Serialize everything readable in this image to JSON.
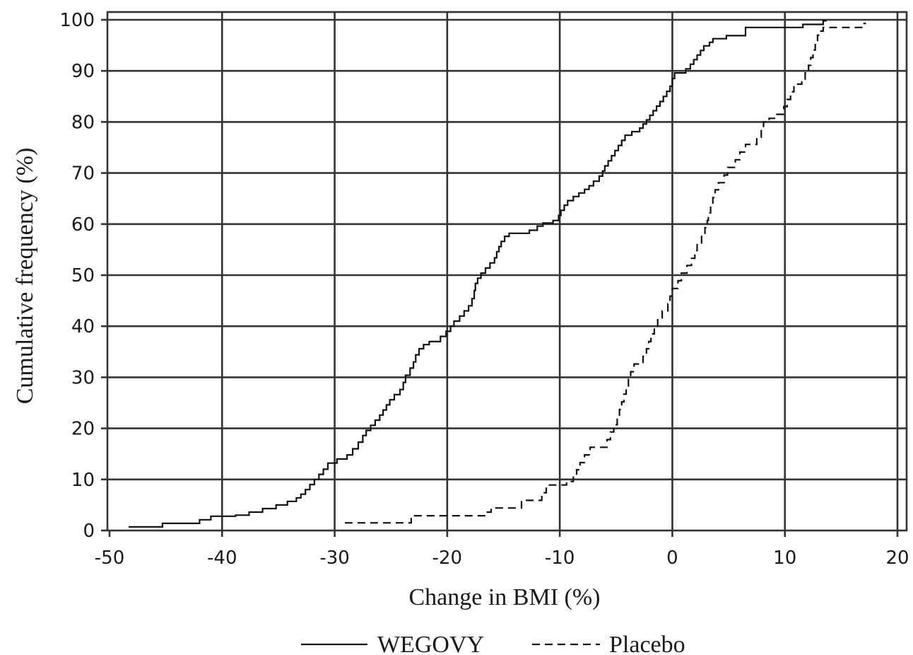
{
  "chart_data": {
    "type": "line",
    "step": true,
    "xlabel": "Change in BMI (%)",
    "ylabel": "Cumulative frequency (%)",
    "xlim": [
      -50,
      20
    ],
    "ylim": [
      0,
      100
    ],
    "xticks": [
      -50,
      -40,
      -30,
      -20,
      -10,
      0,
      10,
      20
    ],
    "yticks": [
      0,
      10,
      20,
      30,
      40,
      50,
      60,
      70,
      80,
      90,
      100
    ],
    "grid": true,
    "legend": "bottom-center",
    "series": [
      {
        "name": "WEGOVY",
        "style": "solid",
        "color": "#111111",
        "points": [
          [
            -48.3,
            0.7
          ],
          [
            -45.3,
            1.4
          ],
          [
            -42.0,
            2.1
          ],
          [
            -41.0,
            2.8
          ],
          [
            -38.8,
            3.0
          ],
          [
            -37.6,
            3.6
          ],
          [
            -36.4,
            4.3
          ],
          [
            -35.2,
            5.0
          ],
          [
            -34.2,
            5.7
          ],
          [
            -33.4,
            6.4
          ],
          [
            -33.0,
            7.1
          ],
          [
            -32.6,
            8.0
          ],
          [
            -32.2,
            9.0
          ],
          [
            -31.8,
            10.0
          ],
          [
            -31.4,
            11.0
          ],
          [
            -31.0,
            12.0
          ],
          [
            -30.6,
            13.2
          ],
          [
            -29.8,
            14.0
          ],
          [
            -28.9,
            14.8
          ],
          [
            -28.4,
            16.0
          ],
          [
            -27.9,
            17.3
          ],
          [
            -27.5,
            18.6
          ],
          [
            -27.2,
            19.6
          ],
          [
            -26.8,
            20.6
          ],
          [
            -26.4,
            21.6
          ],
          [
            -26.0,
            22.6
          ],
          [
            -25.7,
            23.6
          ],
          [
            -25.4,
            24.6
          ],
          [
            -25.1,
            25.6
          ],
          [
            -24.7,
            26.6
          ],
          [
            -24.2,
            27.6
          ],
          [
            -23.9,
            29.0
          ],
          [
            -23.7,
            30.4
          ],
          [
            -23.3,
            31.8
          ],
          [
            -23.0,
            33.0
          ],
          [
            -22.8,
            34.4
          ],
          [
            -22.5,
            35.6
          ],
          [
            -22.1,
            36.4
          ],
          [
            -21.6,
            37.0
          ],
          [
            -20.6,
            38.0
          ],
          [
            -20.1,
            39.0
          ],
          [
            -19.7,
            40.0
          ],
          [
            -19.4,
            41.0
          ],
          [
            -18.9,
            42.0
          ],
          [
            -18.5,
            43.0
          ],
          [
            -18.1,
            44.0
          ],
          [
            -17.8,
            45.4
          ],
          [
            -17.6,
            47.0
          ],
          [
            -17.5,
            48.4
          ],
          [
            -17.3,
            49.4
          ],
          [
            -17.0,
            50.4
          ],
          [
            -16.6,
            51.4
          ],
          [
            -16.2,
            52.4
          ],
          [
            -15.8,
            53.4
          ],
          [
            -15.6,
            54.6
          ],
          [
            -15.4,
            55.6
          ],
          [
            -15.2,
            56.6
          ],
          [
            -14.9,
            57.6
          ],
          [
            -14.5,
            58.2
          ],
          [
            -12.7,
            58.8
          ],
          [
            -12.0,
            59.6
          ],
          [
            -11.5,
            60.2
          ],
          [
            -10.6,
            60.7
          ],
          [
            -10.1,
            61.7
          ],
          [
            -9.9,
            62.7
          ],
          [
            -9.6,
            63.7
          ],
          [
            -9.3,
            64.6
          ],
          [
            -8.8,
            65.4
          ],
          [
            -8.3,
            66.1
          ],
          [
            -7.8,
            66.8
          ],
          [
            -7.4,
            67.5
          ],
          [
            -7.0,
            68.4
          ],
          [
            -6.5,
            69.4
          ],
          [
            -6.2,
            70.4
          ],
          [
            -6.0,
            71.4
          ],
          [
            -5.7,
            72.4
          ],
          [
            -5.4,
            73.4
          ],
          [
            -5.1,
            74.4
          ],
          [
            -4.8,
            75.4
          ],
          [
            -4.5,
            76.4
          ],
          [
            -4.2,
            77.4
          ],
          [
            -3.6,
            78.1
          ],
          [
            -2.9,
            78.8
          ],
          [
            -2.6,
            79.6
          ],
          [
            -2.3,
            80.4
          ],
          [
            -2.0,
            81.3
          ],
          [
            -1.7,
            82.2
          ],
          [
            -1.4,
            83.1
          ],
          [
            -1.1,
            84.0
          ],
          [
            -0.8,
            85.0
          ],
          [
            -0.5,
            86.0
          ],
          [
            -0.2,
            87.0
          ],
          [
            0.0,
            88.5
          ],
          [
            0.2,
            89.6
          ],
          [
            1.2,
            90.4
          ],
          [
            1.6,
            91.3
          ],
          [
            1.9,
            92.2
          ],
          [
            2.2,
            93.1
          ],
          [
            2.5,
            94.0
          ],
          [
            2.8,
            94.9
          ],
          [
            3.3,
            95.6
          ],
          [
            3.6,
            96.3
          ],
          [
            4.8,
            96.9
          ],
          [
            6.5,
            98.5
          ],
          [
            11.6,
            99.1
          ],
          [
            13.4,
            99.8
          ],
          [
            13.7,
            99.8
          ]
        ]
      },
      {
        "name": "Placebo",
        "style": "dashed",
        "color": "#111111",
        "points": [
          [
            -29.1,
            1.5
          ],
          [
            -23.2,
            2.9
          ],
          [
            -16.5,
            3.6
          ],
          [
            -16.1,
            4.4
          ],
          [
            -13.4,
            5.9
          ],
          [
            -11.6,
            7.4
          ],
          [
            -11.2,
            8.9
          ],
          [
            -9.4,
            9.6
          ],
          [
            -8.8,
            10.4
          ],
          [
            -8.5,
            11.9
          ],
          [
            -8.2,
            13.3
          ],
          [
            -7.8,
            14.8
          ],
          [
            -7.3,
            16.3
          ],
          [
            -5.8,
            17.8
          ],
          [
            -5.5,
            19.3
          ],
          [
            -5.2,
            20.7
          ],
          [
            -4.9,
            22.2
          ],
          [
            -4.7,
            23.7
          ],
          [
            -4.5,
            25.2
          ],
          [
            -4.3,
            26.7
          ],
          [
            -4.1,
            28.1
          ],
          [
            -3.9,
            29.6
          ],
          [
            -3.7,
            31.1
          ],
          [
            -3.4,
            32.6
          ],
          [
            -2.6,
            34.1
          ],
          [
            -2.3,
            35.6
          ],
          [
            -2.1,
            37.0
          ],
          [
            -1.9,
            38.5
          ],
          [
            -1.6,
            40.0
          ],
          [
            -1.3,
            41.5
          ],
          [
            -0.9,
            43.0
          ],
          [
            -0.4,
            44.4
          ],
          [
            -0.2,
            45.9
          ],
          [
            0.0,
            47.4
          ],
          [
            0.5,
            48.9
          ],
          [
            0.8,
            50.4
          ],
          [
            1.3,
            51.9
          ],
          [
            1.7,
            53.3
          ],
          [
            2.0,
            54.8
          ],
          [
            2.2,
            56.3
          ],
          [
            2.6,
            57.8
          ],
          [
            2.9,
            59.3
          ],
          [
            3.1,
            60.7
          ],
          [
            3.2,
            62.2
          ],
          [
            3.4,
            63.7
          ],
          [
            3.6,
            65.2
          ],
          [
            3.8,
            66.7
          ],
          [
            4.1,
            68.1
          ],
          [
            4.6,
            69.6
          ],
          [
            4.9,
            71.1
          ],
          [
            5.6,
            72.6
          ],
          [
            6.0,
            74.1
          ],
          [
            6.5,
            75.6
          ],
          [
            7.5,
            77.0
          ],
          [
            7.9,
            78.5
          ],
          [
            8.1,
            80.0
          ],
          [
            8.6,
            80.7
          ],
          [
            9.2,
            81.5
          ],
          [
            9.9,
            83.0
          ],
          [
            10.2,
            84.4
          ],
          [
            10.5,
            85.9
          ],
          [
            10.8,
            87.4
          ],
          [
            11.5,
            88.2
          ],
          [
            11.8,
            89.6
          ],
          [
            12.1,
            91.1
          ],
          [
            12.3,
            92.6
          ],
          [
            12.5,
            94.1
          ],
          [
            12.7,
            95.6
          ],
          [
            12.9,
            97.0
          ],
          [
            13.2,
            97.8
          ],
          [
            13.4,
            98.5
          ],
          [
            16.9,
            99.3
          ],
          [
            17.2,
            99.3
          ]
        ]
      }
    ]
  }
}
